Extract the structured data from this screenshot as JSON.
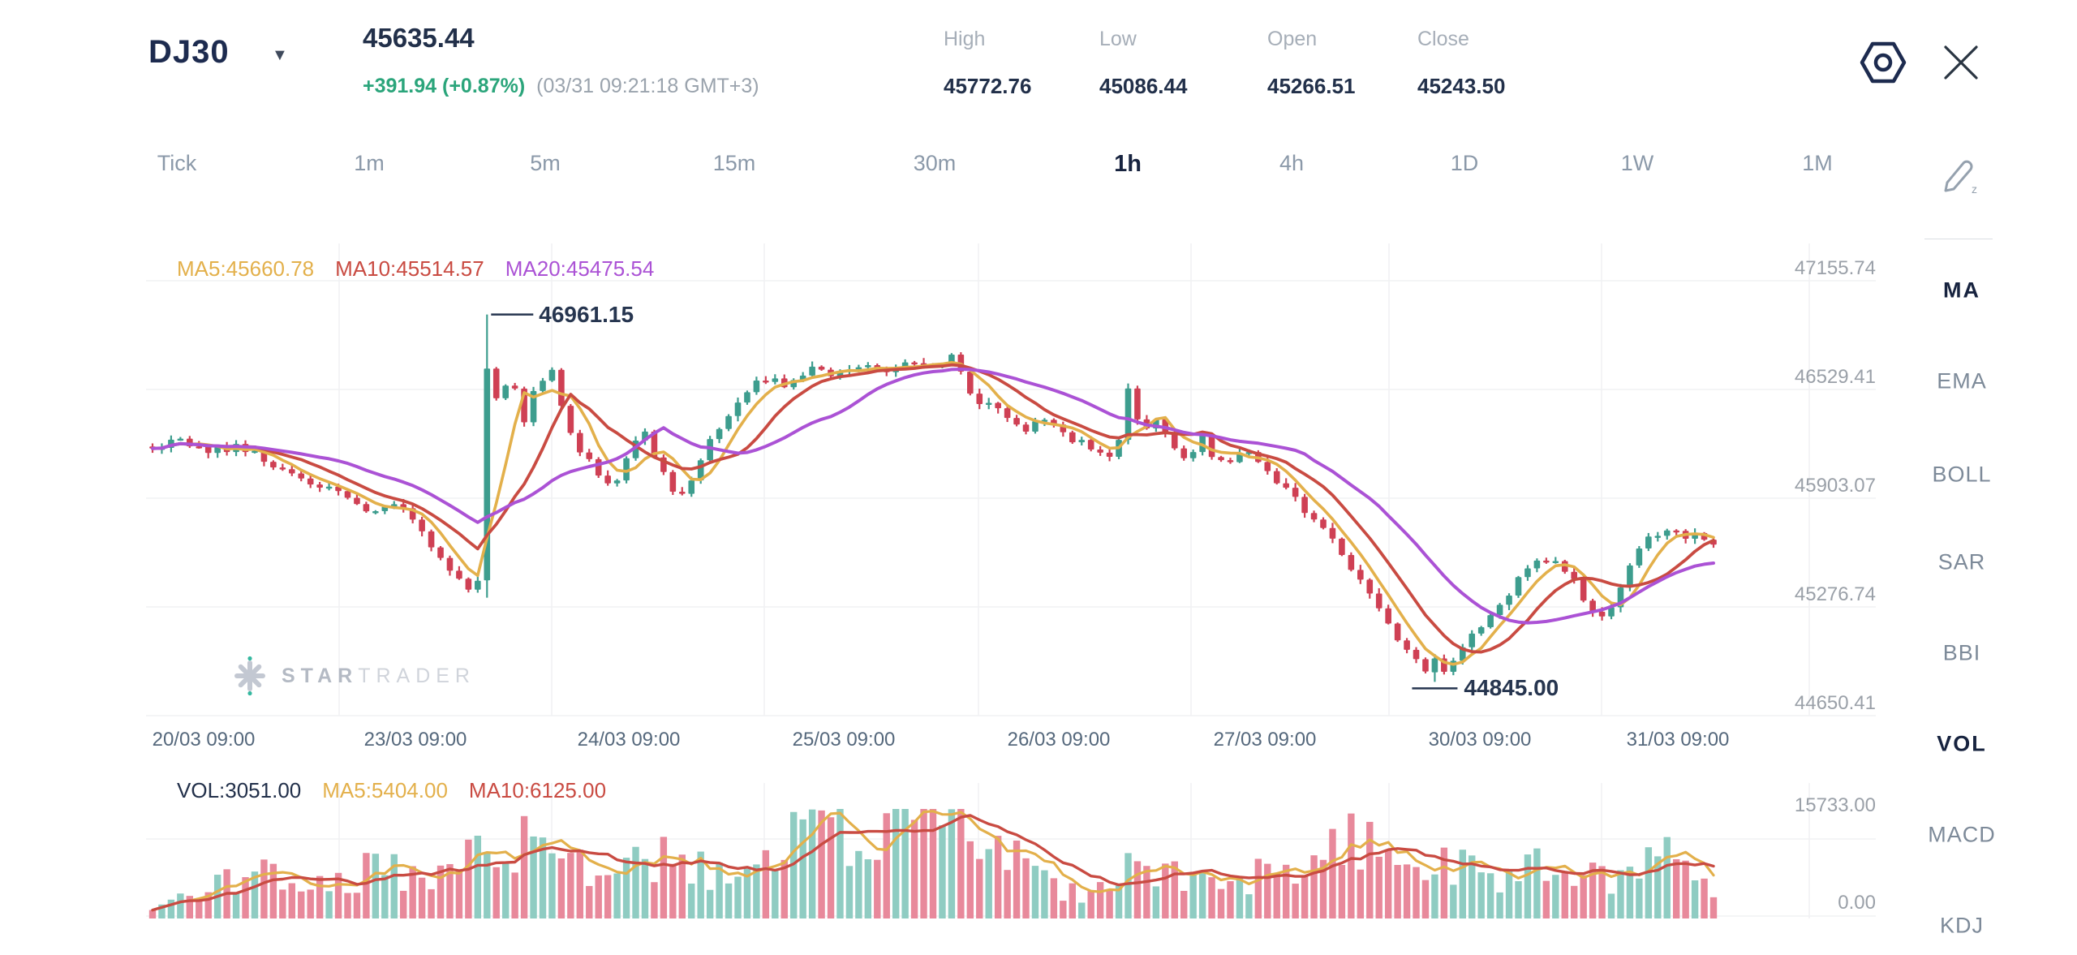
{
  "header": {
    "symbol": "DJ30",
    "price": "45635.44",
    "change": "+391.94 (+0.87%)",
    "timestamp": "(03/31 09:21:18 GMT+3)",
    "stats": [
      {
        "label": "High",
        "value": "45772.76"
      },
      {
        "label": "Low",
        "value": "45086.44"
      },
      {
        "label": "Open",
        "value": "45266.51"
      },
      {
        "label": "Close",
        "value": "45243.50"
      }
    ]
  },
  "toolbar": {
    "timeframes": [
      "Tick",
      "1m",
      "5m",
      "15m",
      "30m",
      "1h",
      "4h",
      "1D",
      "1W",
      "1M"
    ],
    "active": "1h"
  },
  "indicators": {
    "items": [
      "MA",
      "EMA",
      "BOLL",
      "SAR",
      "BBI",
      "VOL",
      "MACD",
      "KDJ"
    ],
    "active": [
      "MA",
      "VOL"
    ]
  },
  "watermark": {
    "brand_primary": "STAR",
    "brand_secondary": "TRADER"
  },
  "chart_data": {
    "type": "candlestick",
    "symbol": "DJ30",
    "interval": "1h",
    "title": "DJ30 1h candlestick chart with MA overlay and volume pane",
    "price_axis": {
      "labels": [
        "47155.74",
        "46529.41",
        "45903.07",
        "45276.74",
        "44650.41"
      ],
      "max": 47155.74,
      "min": 44650.41
    },
    "x_axis": {
      "labels": [
        "20/03 09:00",
        "23/03 09:00",
        "24/03 09:00",
        "25/03 09:00",
        "26/03 09:00",
        "27/03 09:00",
        "30/03 09:00",
        "31/03 09:00"
      ]
    },
    "volume_axis": {
      "labels": [
        "15733.00",
        "0.00"
      ],
      "max": 15733,
      "min": 0
    },
    "overlays": {
      "ma_legend": [
        {
          "label": "MA5:45660.78",
          "color": "#e3b04b"
        },
        {
          "label": "MA10:45514.57",
          "color": "#c94b42"
        },
        {
          "label": "MA20:45475.54",
          "color": "#ab52d5"
        }
      ]
    },
    "volume_pane": {
      "legend": [
        {
          "label": "VOL:3051.00",
          "color": "#22304a"
        },
        {
          "label": "MA5:5404.00",
          "color": "#e3b04b"
        },
        {
          "label": "MA10:6125.00",
          "color": "#c94b42"
        }
      ]
    },
    "annotations": {
      "high_label": "46961.15",
      "high_value": 46961.15,
      "low_label": "44845.00",
      "low_value": 44845.0
    },
    "candle_count": 169,
    "price_anchors": [
      [
        0,
        46190
      ],
      [
        0.017,
        46230
      ],
      [
        0.037,
        46170
      ],
      [
        0.058,
        46200
      ],
      [
        0.079,
        46080
      ],
      [
        0.1,
        46000
      ],
      [
        0.121,
        45930
      ],
      [
        0.141,
        45820
      ],
      [
        0.157,
        45890
      ],
      [
        0.173,
        45700
      ],
      [
        0.186,
        45540
      ],
      [
        0.196,
        45440
      ],
      [
        0.204,
        45350
      ],
      [
        0.21,
        45430
      ],
      [
        0.22,
        46480
      ],
      [
        0.229,
        46600
      ],
      [
        0.238,
        46350
      ],
      [
        0.246,
        46550
      ],
      [
        0.256,
        46620
      ],
      [
        0.264,
        46350
      ],
      [
        0.272,
        46200
      ],
      [
        0.282,
        46080
      ],
      [
        0.291,
        45980
      ],
      [
        0.298,
        46020
      ],
      [
        0.307,
        46200
      ],
      [
        0.315,
        46300
      ],
      [
        0.324,
        46100
      ],
      [
        0.333,
        45950
      ],
      [
        0.34,
        45900
      ],
      [
        0.349,
        46100
      ],
      [
        0.36,
        46280
      ],
      [
        0.37,
        46400
      ],
      [
        0.38,
        46500
      ],
      [
        0.391,
        46600
      ],
      [
        0.406,
        46550
      ],
      [
        0.422,
        46650
      ],
      [
        0.438,
        46600
      ],
      [
        0.453,
        46680
      ],
      [
        0.469,
        46620
      ],
      [
        0.484,
        46700
      ],
      [
        0.5,
        46650
      ],
      [
        0.513,
        46730
      ],
      [
        0.526,
        46480
      ],
      [
        0.542,
        46400
      ],
      [
        0.557,
        46300
      ],
      [
        0.573,
        46350
      ],
      [
        0.588,
        46250
      ],
      [
        0.604,
        46180
      ],
      [
        0.617,
        46150
      ],
      [
        0.626,
        46585
      ],
      [
        0.634,
        46250
      ],
      [
        0.643,
        46350
      ],
      [
        0.653,
        46200
      ],
      [
        0.664,
        46100
      ],
      [
        0.671,
        46300
      ],
      [
        0.679,
        46150
      ],
      [
        0.69,
        46100
      ],
      [
        0.7,
        46180
      ],
      [
        0.71,
        46120
      ],
      [
        0.721,
        45990
      ],
      [
        0.731,
        45900
      ],
      [
        0.742,
        45800
      ],
      [
        0.752,
        45700
      ],
      [
        0.764,
        45550
      ],
      [
        0.776,
        45400
      ],
      [
        0.786,
        45250
      ],
      [
        0.796,
        45120
      ],
      [
        0.807,
        45000
      ],
      [
        0.816,
        44920
      ],
      [
        0.823,
        44880
      ],
      [
        0.83,
        44920
      ],
      [
        0.838,
        45020
      ],
      [
        0.847,
        45120
      ],
      [
        0.858,
        45230
      ],
      [
        0.868,
        45350
      ],
      [
        0.878,
        45460
      ],
      [
        0.889,
        45540
      ],
      [
        0.899,
        45560
      ],
      [
        0.91,
        45440
      ],
      [
        0.918,
        45300
      ],
      [
        0.927,
        45230
      ],
      [
        0.936,
        45300
      ],
      [
        0.944,
        45480
      ],
      [
        0.953,
        45620
      ],
      [
        0.963,
        45700
      ],
      [
        0.972,
        45740
      ],
      [
        0.981,
        45660
      ],
      [
        0.99,
        45700
      ],
      [
        1,
        45635
      ]
    ],
    "volume_anchors": [
      [
        0,
        1500
      ],
      [
        0.037,
        4500
      ],
      [
        0.074,
        6500
      ],
      [
        0.11,
        5200
      ],
      [
        0.147,
        7500
      ],
      [
        0.178,
        6000
      ],
      [
        0.213,
        13500
      ],
      [
        0.235,
        11000
      ],
      [
        0.266,
        8500
      ],
      [
        0.297,
        6500
      ],
      [
        0.328,
        9000
      ],
      [
        0.36,
        7200
      ],
      [
        0.391,
        9500
      ],
      [
        0.422,
        12000
      ],
      [
        0.453,
        14000
      ],
      [
        0.474,
        15200
      ],
      [
        0.498,
        15733
      ],
      [
        0.516,
        12000
      ],
      [
        0.547,
        9000
      ],
      [
        0.578,
        5000
      ],
      [
        0.588,
        3800
      ],
      [
        0.609,
        4200
      ],
      [
        0.63,
        7500
      ],
      [
        0.661,
        6000
      ],
      [
        0.692,
        5500
      ],
      [
        0.712,
        7000
      ],
      [
        0.744,
        8500
      ],
      [
        0.765,
        13000
      ],
      [
        0.786,
        12000
      ],
      [
        0.807,
        9000
      ],
      [
        0.833,
        7500
      ],
      [
        0.858,
        6000
      ],
      [
        0.889,
        7500
      ],
      [
        0.915,
        5500
      ],
      [
        0.941,
        6500
      ],
      [
        0.962,
        12500
      ],
      [
        0.983,
        7000
      ],
      [
        1,
        3051
      ]
    ],
    "special": {
      "spike_index": 36,
      "spike": {
        "open": 45430,
        "close": 46650,
        "high": 46961.15,
        "low": 45330
      },
      "low_index": 138,
      "low_low": 44845.0,
      "max_vol_index": 84,
      "max_vol": 15733,
      "last_close": 45635.44,
      "last_vol": 3051
    },
    "colors": {
      "up": "#3d9d8e",
      "down": "#cf4054",
      "vol_up": "#8fccc2",
      "vol_down": "#e8899b",
      "ma5": "#e3b04b",
      "ma10": "#c94b42",
      "ma20": "#ab52d5",
      "grid": "#f1f2f4",
      "annotation": "#26354f"
    }
  }
}
